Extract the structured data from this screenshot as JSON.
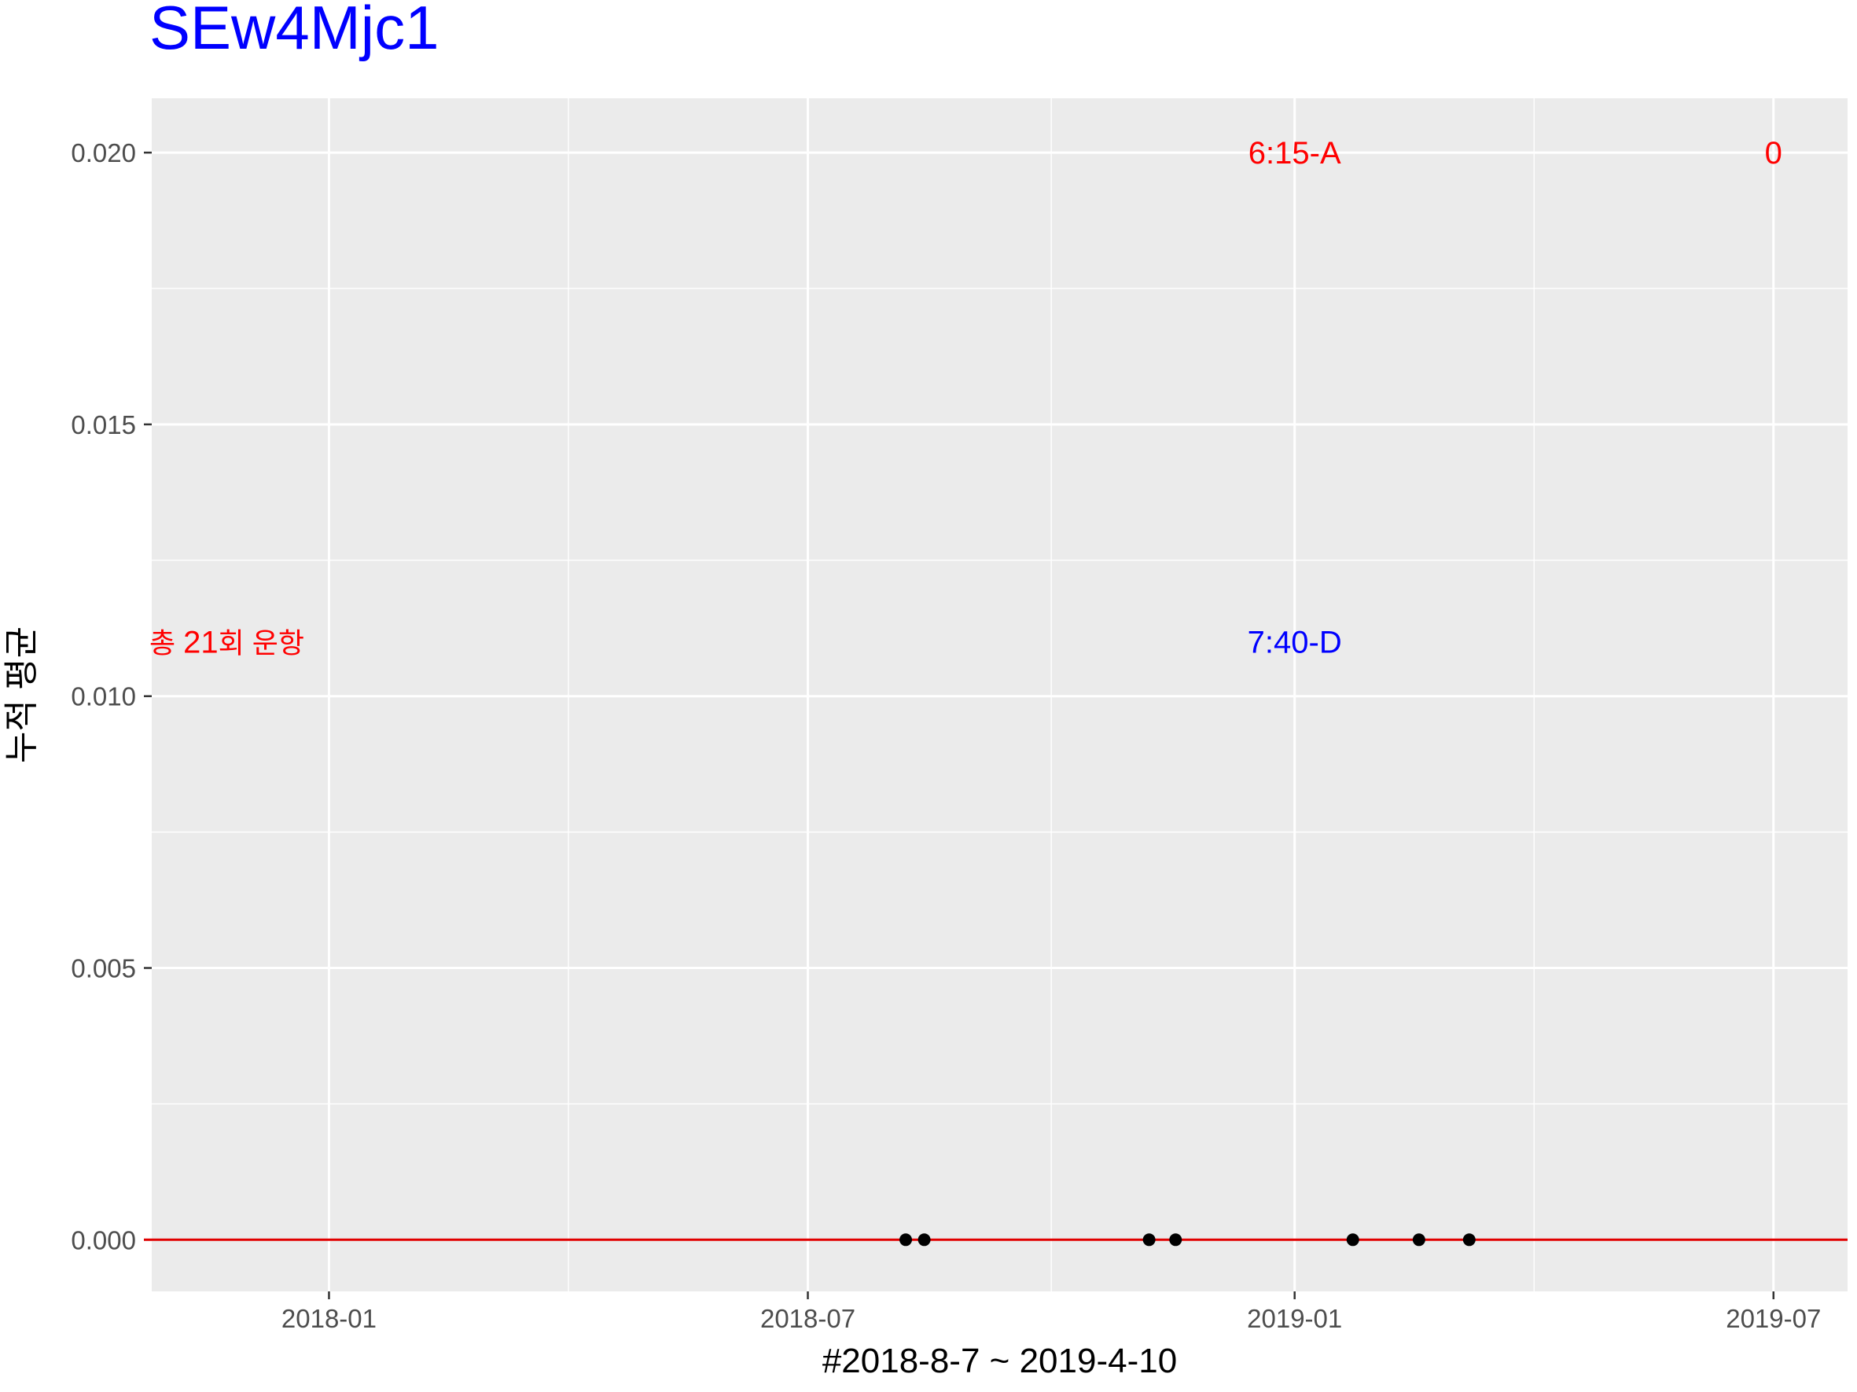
{
  "chart_data": {
    "type": "scatter",
    "title": "SEw4Mjc1",
    "title_color": "#0000ff",
    "xlabel": "#2018-8-7 ~ 2019-4-10",
    "ylabel": "누적 평균",
    "x_ticks": [
      "2018-01",
      "2018-07",
      "2019-01",
      "2019-07"
    ],
    "x_tick_dates": [
      "2018-01-01",
      "2018-07-01",
      "2019-01-01",
      "2019-07-01"
    ],
    "xlim": [
      "2017-10-26",
      "2019-07-29"
    ],
    "y_ticks": [
      "0.000",
      "0.005",
      "0.010",
      "0.015",
      "0.020"
    ],
    "y_tick_values": [
      0.0,
      0.005,
      0.01,
      0.015,
      0.02
    ],
    "ylim": [
      -0.00095,
      0.021
    ],
    "grid": true,
    "points": {
      "x": [
        "2018-08-07",
        "2018-08-14",
        "2018-11-07",
        "2018-11-17",
        "2019-01-23",
        "2019-02-17",
        "2019-03-08"
      ],
      "y": [
        0,
        0,
        0,
        0,
        0,
        0,
        0
      ],
      "color": "#000000"
    },
    "hline": {
      "y": 0,
      "color": "#e00000"
    },
    "annotations": [
      {
        "id": "arr",
        "text": "6:15-A",
        "x": "2019-01-01",
        "y": 0.02,
        "color": "#ff0000"
      },
      {
        "id": "count",
        "text": "0",
        "x": "2019-07-01",
        "y": 0.02,
        "color": "#ff0000"
      },
      {
        "id": "dep",
        "text": "7:40-D",
        "x": "2019-01-01",
        "y": 0.011,
        "color": "#0000ff"
      }
    ],
    "total_label": {
      "prefix": "총 ",
      "number": "21",
      "suffix": "회 운항",
      "y": 0.011,
      "color": "#ff0000"
    },
    "colors": {
      "panel_bg": "#ebebeb",
      "grid_major": "#ffffff",
      "tick_text": "#4d4d4d",
      "tick_mark": "#333333"
    }
  }
}
